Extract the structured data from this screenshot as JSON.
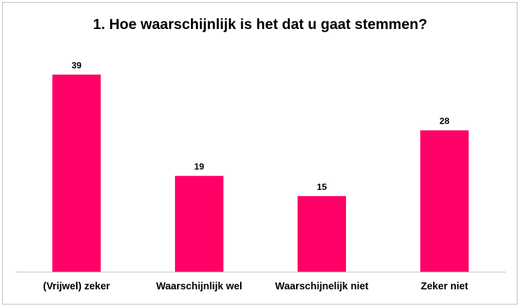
{
  "chart_data": {
    "type": "bar",
    "title": "1. Hoe waarschijnlijk is het dat u gaat stemmen?",
    "categories": [
      "(Vrijwel) zeker",
      "Waarschijnlijk wel",
      "Waarschijnelijk niet",
      "Zeker niet"
    ],
    "values": [
      39,
      19,
      15,
      28
    ],
    "data_labels": [
      "39",
      "19",
      "15",
      "28"
    ],
    "ylim": [
      0,
      43
    ],
    "grid": false,
    "legend": "none",
    "bar_color": "#FF0066",
    "xlabel": "",
    "ylabel": ""
  }
}
